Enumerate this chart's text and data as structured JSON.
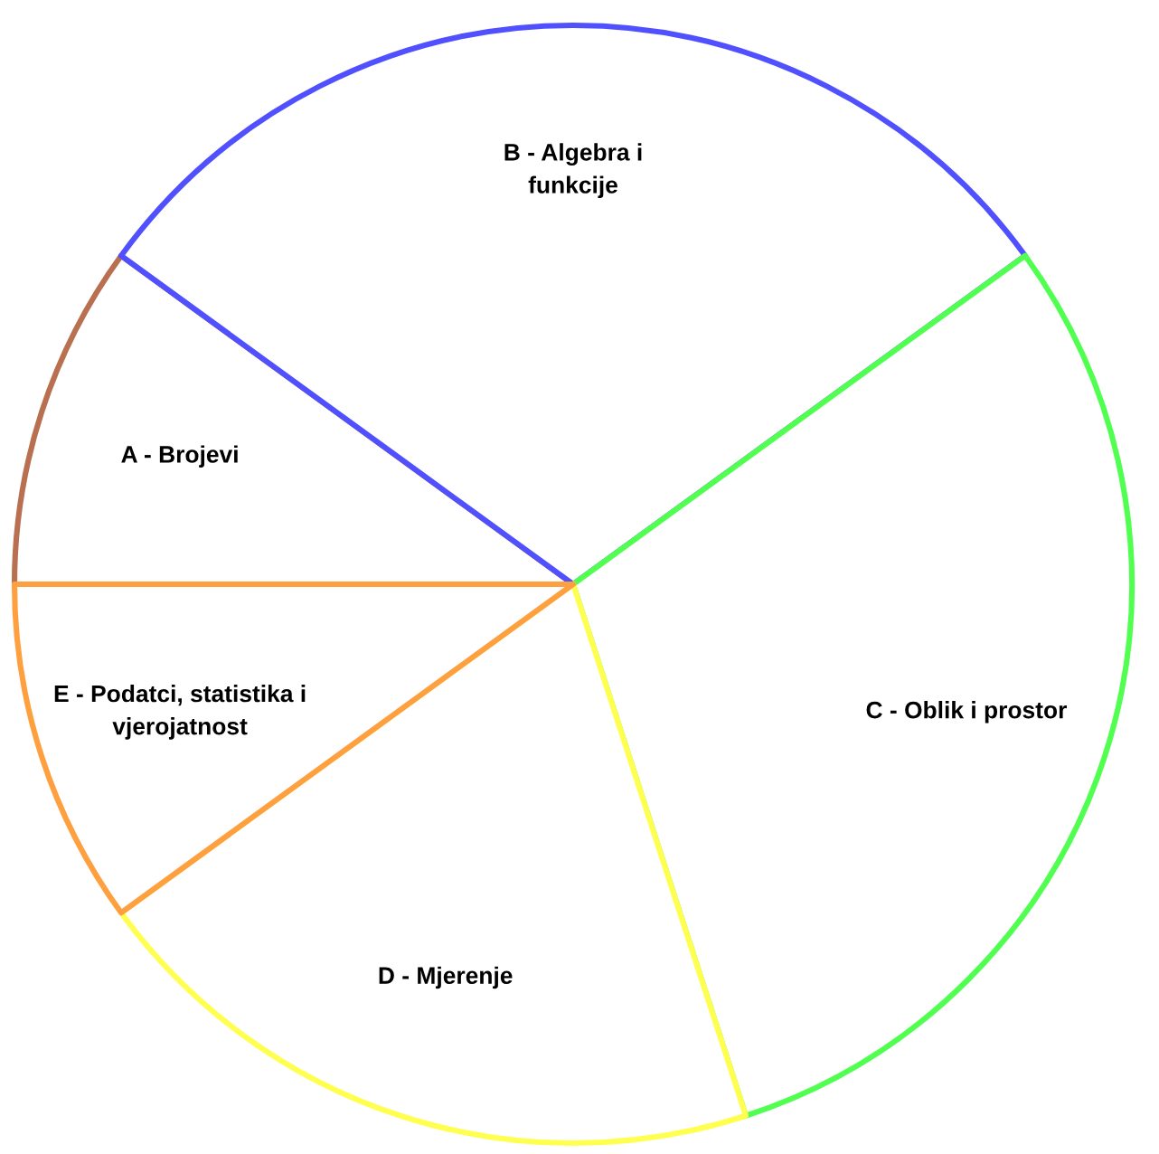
{
  "chart_data": {
    "type": "pie",
    "categories": [
      "A - Brojevi",
      "B - Algebra i\nfunkcije",
      "C - Oblik i prostor",
      "D - Mjerenje",
      "E - Podatci, statistika i\nvjerojatnost"
    ],
    "values": [
      10,
      30,
      30,
      20,
      10
    ],
    "colors": [
      "#b87050",
      "#5050ff",
      "#50ff50",
      "#ffff50",
      "#ffa040"
    ]
  }
}
